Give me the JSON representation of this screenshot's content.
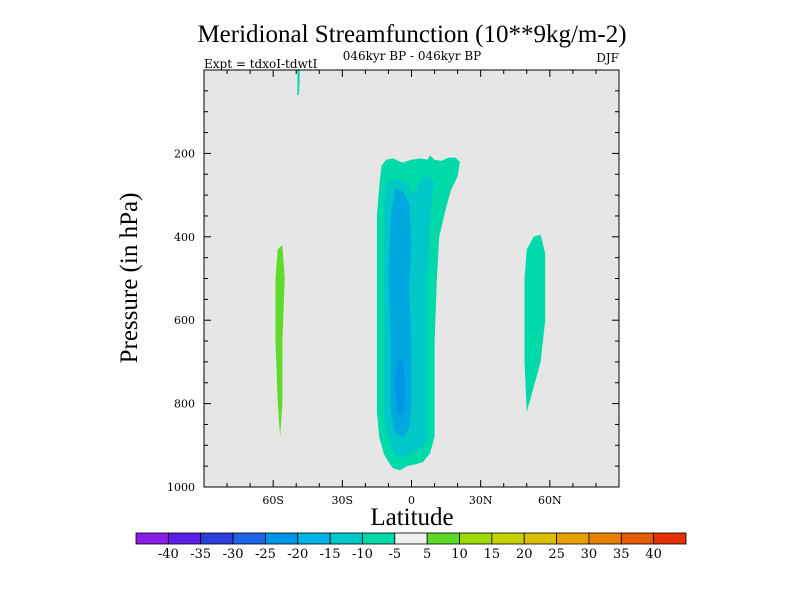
{
  "chart_data": {
    "type": "contour",
    "title": "Meridional Streamfunction (10**9kg/m-2)",
    "subtitle": "046kyr BP - 046kyr BP",
    "left_label": "Expt = tdxoI-tdwtI",
    "right_label": "DJF",
    "xlabel": "Latitude",
    "ylabel": "Pressure (in hPa)",
    "xlim": [
      -90,
      90
    ],
    "ylim": [
      1000,
      0
    ],
    "x_ticks": [
      {
        "value": -60,
        "label": "60S"
      },
      {
        "value": -30,
        "label": "30S"
      },
      {
        "value": 0,
        "label": "0"
      },
      {
        "value": 30,
        "label": "30N"
      },
      {
        "value": 60,
        "label": "60N"
      }
    ],
    "y_ticks": [
      {
        "value": 200,
        "label": "200"
      },
      {
        "value": 400,
        "label": "400"
      },
      {
        "value": 600,
        "label": "600"
      },
      {
        "value": 800,
        "label": "800"
      },
      {
        "value": 1000,
        "label": "1000"
      }
    ],
    "background_color": "#e6e6e6",
    "regions": [
      {
        "name": "cell-high-lat-north-strip",
        "level": -10,
        "color": "#00d9a8",
        "points": [
          [
            -49.5,
            0
          ],
          [
            -48.5,
            0
          ],
          [
            -48.5,
            20
          ],
          [
            -48.8,
            60
          ],
          [
            -49.5,
            60
          ]
        ]
      },
      {
        "name": "cell-60s-positive",
        "level": 5,
        "color": "#5fd92a",
        "points": [
          [
            -58,
            430
          ],
          [
            -56,
            420
          ],
          [
            -55,
            500
          ],
          [
            -56,
            650
          ],
          [
            -56,
            800
          ],
          [
            -57,
            880
          ],
          [
            -58,
            800
          ],
          [
            -59,
            650
          ],
          [
            -59,
            500
          ]
        ]
      },
      {
        "name": "cell-60n-negative",
        "level": -10,
        "color": "#00d9a8",
        "points": [
          [
            53,
            400
          ],
          [
            56,
            395
          ],
          [
            58,
            440
          ],
          [
            58,
            600
          ],
          [
            56,
            700
          ],
          [
            52,
            780
          ],
          [
            50,
            820
          ],
          [
            49,
            700
          ],
          [
            49,
            500
          ],
          [
            50,
            430
          ]
        ]
      },
      {
        "name": "cell-tropics-outer",
        "level": -10,
        "color": "#00d9a8",
        "points": [
          [
            -13,
            230
          ],
          [
            -11,
            215
          ],
          [
            -8,
            212
          ],
          [
            -4,
            222
          ],
          [
            0,
            215
          ],
          [
            4,
            212
          ],
          [
            7,
            215
          ],
          [
            8,
            205
          ],
          [
            10,
            215
          ],
          [
            13,
            218
          ],
          [
            16,
            210
          ],
          [
            19,
            210
          ],
          [
            21,
            220
          ],
          [
            20,
            255
          ],
          [
            17,
            290
          ],
          [
            15,
            330
          ],
          [
            12,
            400
          ],
          [
            11,
            500
          ],
          [
            10,
            650
          ],
          [
            10,
            800
          ],
          [
            10,
            880
          ],
          [
            8,
            920
          ],
          [
            5,
            940
          ],
          [
            2,
            945
          ],
          [
            -2,
            950
          ],
          [
            -5,
            960
          ],
          [
            -8,
            955
          ],
          [
            -10,
            940
          ],
          [
            -12,
            920
          ],
          [
            -14,
            880
          ],
          [
            -15,
            820
          ],
          [
            -15,
            650
          ],
          [
            -15,
            500
          ],
          [
            -15,
            350
          ],
          [
            -14,
            280
          ]
        ]
      },
      {
        "name": "cell-tropics-minus15",
        "level": -15,
        "color": "#00c8c8",
        "points": [
          [
            -11,
            270
          ],
          [
            -6,
            260
          ],
          [
            -2,
            270
          ],
          [
            1,
            300
          ],
          [
            4,
            260
          ],
          [
            7,
            255
          ],
          [
            10,
            270
          ],
          [
            9,
            300
          ],
          [
            8,
            380
          ],
          [
            7,
            500
          ],
          [
            7,
            650
          ],
          [
            7,
            800
          ],
          [
            7,
            880
          ],
          [
            5,
            905
          ],
          [
            0,
            920
          ],
          [
            -4,
            930
          ],
          [
            -7,
            925
          ],
          [
            -9,
            900
          ],
          [
            -11,
            870
          ],
          [
            -12,
            820
          ],
          [
            -12,
            650
          ],
          [
            -12,
            500
          ],
          [
            -12,
            350
          ]
        ]
      },
      {
        "name": "cell-tropics-minus20",
        "level": -20,
        "color": "#00a8e0",
        "points": [
          [
            -7,
            285
          ],
          [
            -4,
            290
          ],
          [
            -1,
            320
          ],
          [
            0,
            420
          ],
          [
            -1,
            520
          ],
          [
            0,
            650
          ],
          [
            0,
            800
          ],
          [
            -1,
            860
          ],
          [
            -4,
            880
          ],
          [
            -7,
            870
          ],
          [
            -9,
            820
          ],
          [
            -9,
            650
          ],
          [
            -10,
            500
          ],
          [
            -9,
            350
          ]
        ]
      },
      {
        "name": "cell-tropics-core",
        "level": -25,
        "color": "#0096e6",
        "points": [
          [
            -6,
            700
          ],
          [
            -4,
            690
          ],
          [
            -3,
            740
          ],
          [
            -3,
            800
          ],
          [
            -4,
            830
          ],
          [
            -6,
            820
          ],
          [
            -7,
            770
          ],
          [
            -7,
            730
          ]
        ]
      }
    ],
    "colorbar": {
      "boxes": [
        "#8a1ee6",
        "#5a1ee6",
        "#2d3cdc",
        "#1e64e6",
        "#0096e6",
        "#00b4e6",
        "#00c8c8",
        "#00d9a8",
        "#f0f0f0",
        "#5fd92a",
        "#a0d90a",
        "#c8d200",
        "#dcbe00",
        "#e6a000",
        "#e68200",
        "#e65a00",
        "#e63200"
      ],
      "labels": [
        "-40",
        "-35",
        "-30",
        "-25",
        "-20",
        "-15",
        "-10",
        "-5",
        "5",
        "10",
        "15",
        "20",
        "25",
        "30",
        "35",
        "40"
      ]
    }
  }
}
